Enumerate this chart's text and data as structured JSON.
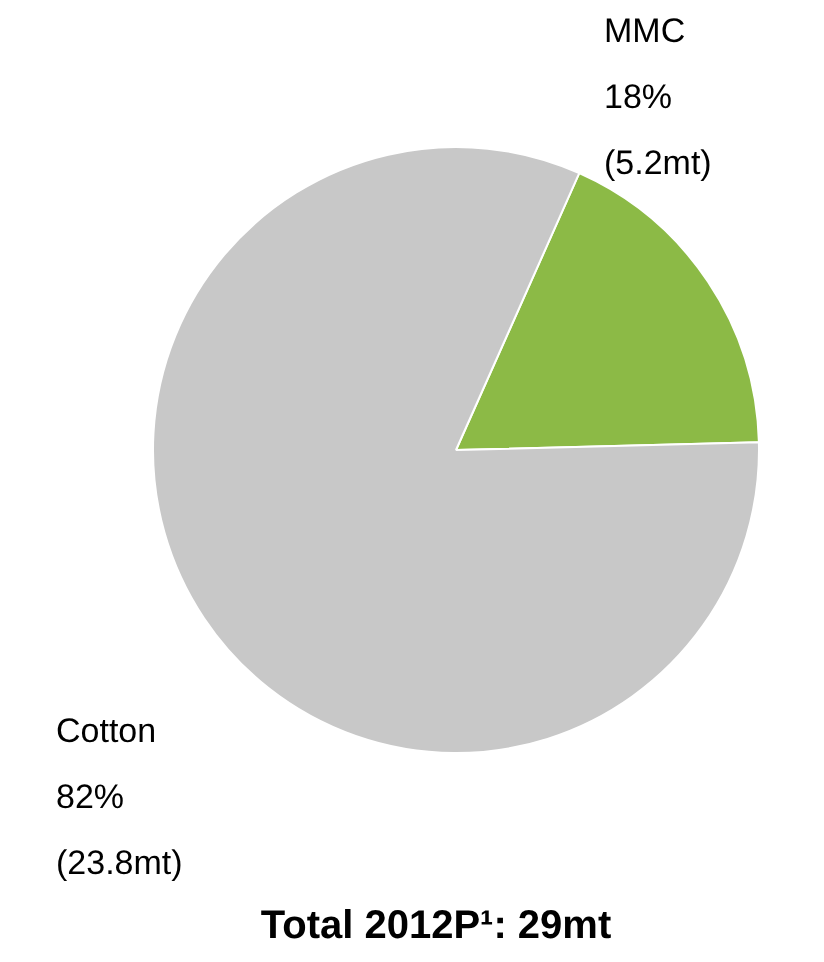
{
  "chart_data": {
    "type": "pie",
    "title": "Total 2012P¹: 29mt",
    "categories": [
      "MMC",
      "Cotton"
    ],
    "values": [
      5.2,
      23.8
    ],
    "value_labels": [
      "18%\n(5.2mt)",
      "82%\n(23.8mt)"
    ],
    "colors": [
      "#8cba46",
      "#c8c8c8"
    ]
  }
}
